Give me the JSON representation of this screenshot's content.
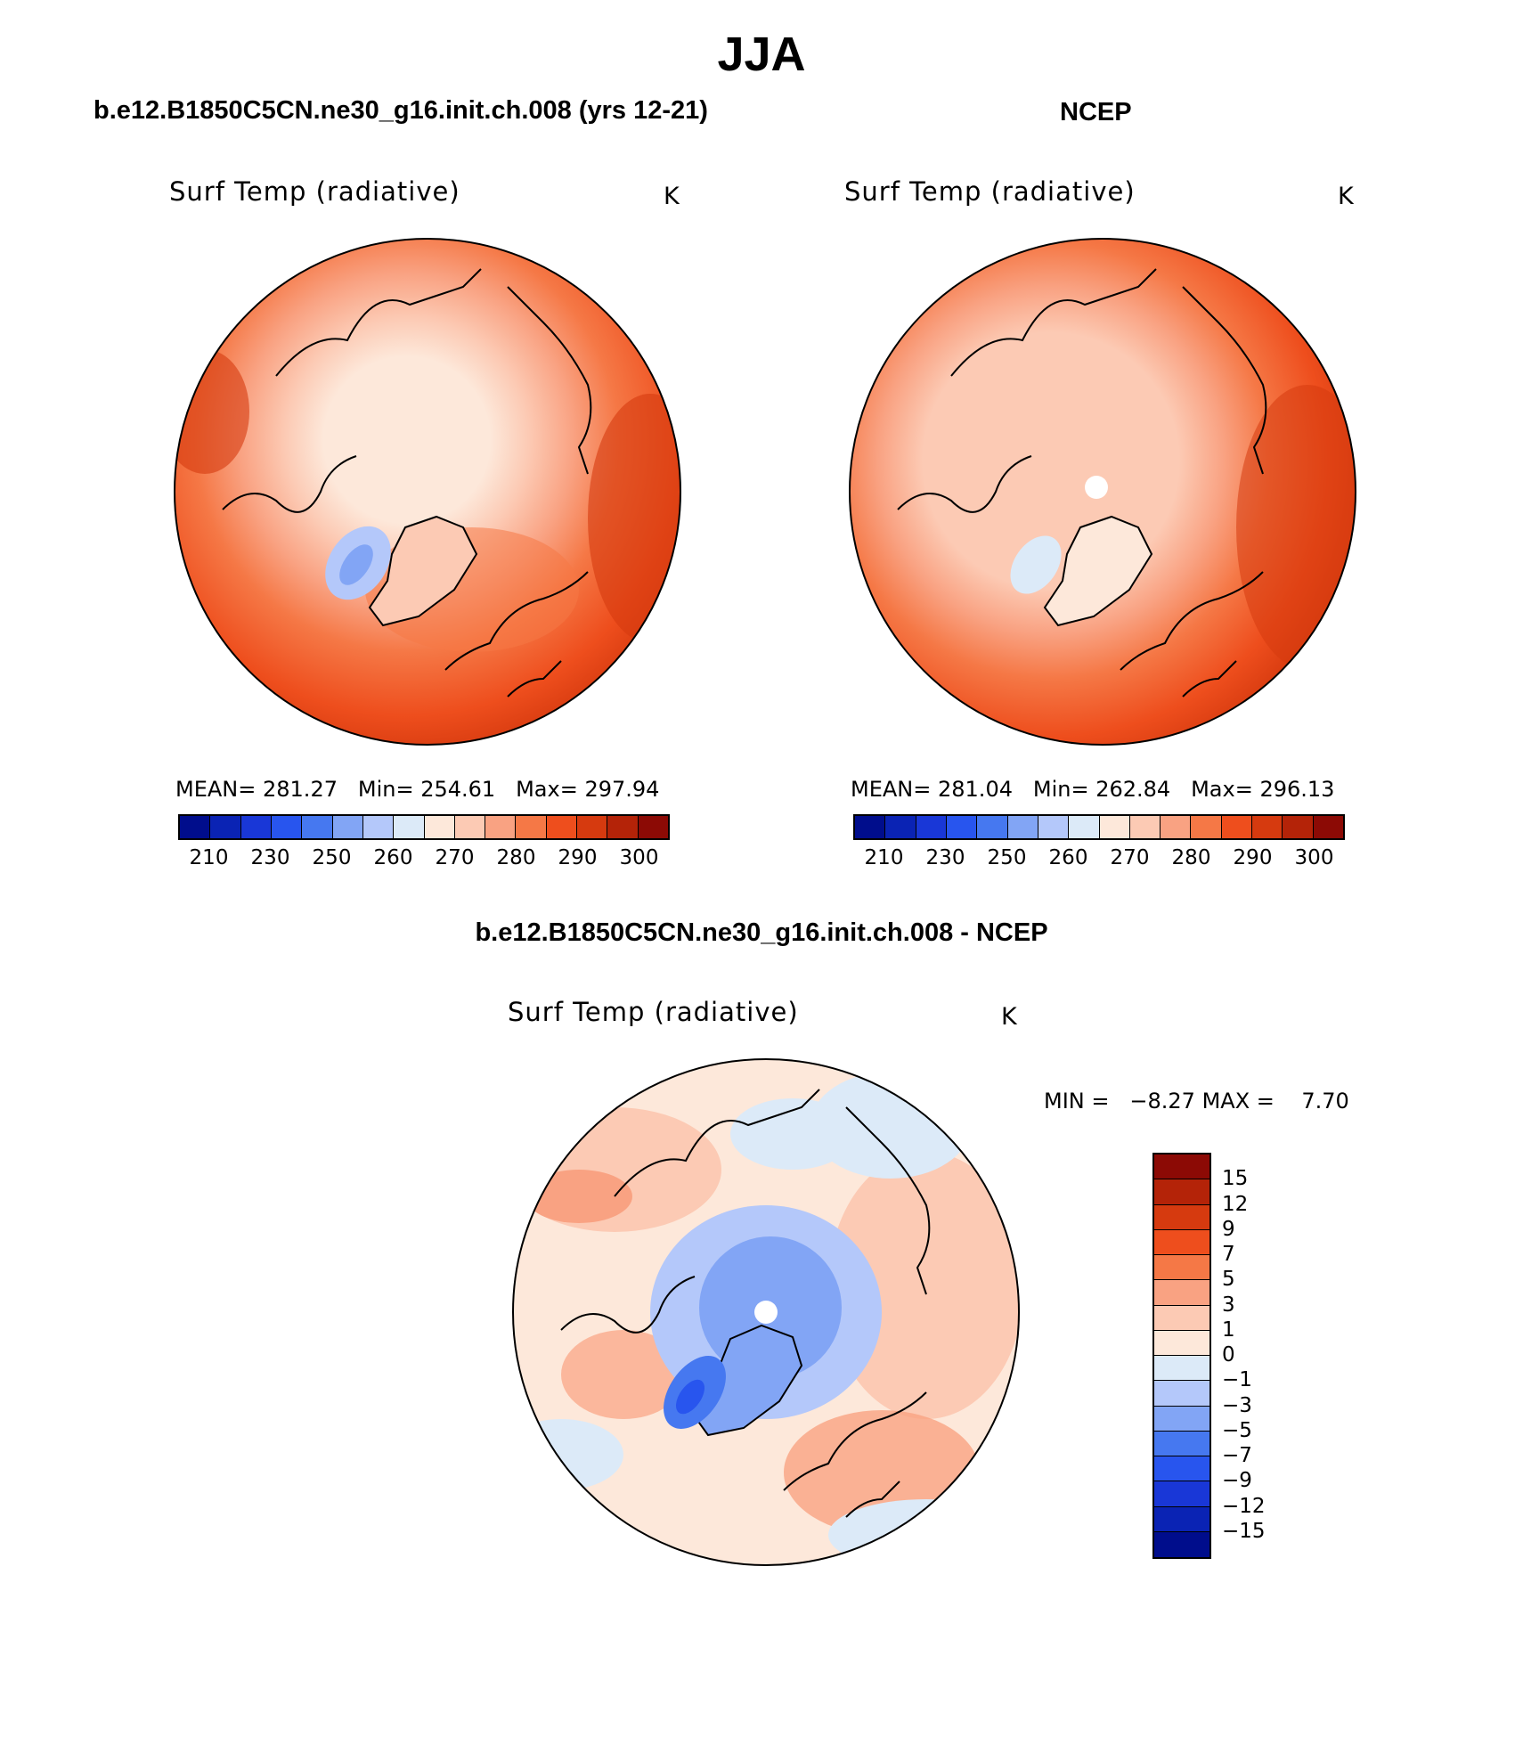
{
  "figure": {
    "season_title": "JJA",
    "diff_title": "b.e12.B1850C5CN.ne30_g16.init.ch.008 - NCEP"
  },
  "panels": {
    "model": {
      "title": "b.e12.B1850C5CN.ne30_g16.init.ch.008 (yrs 12-21)",
      "variable": "Surf Temp (radiative)",
      "units": "K",
      "mean_label": "MEAN=",
      "mean_value": "281.27",
      "min_label": "Min=",
      "min_value": "254.61",
      "max_label": "Max=",
      "max_value": "297.94"
    },
    "obs": {
      "title": "NCEP",
      "variable": "Surf Temp (radiative)",
      "units": "K",
      "mean_label": "MEAN=",
      "mean_value": "281.04",
      "min_label": "Min=",
      "min_value": "262.84",
      "max_label": "Max=",
      "max_value": "296.13"
    },
    "diff": {
      "variable": "Surf Temp (radiative)",
      "units": "K",
      "min_label": "MIN =",
      "min_value": "−8.27",
      "max_label": "MAX =",
      "max_value": "7.70"
    }
  },
  "colorbars": {
    "absolute": {
      "colors": [
        "#000d8c",
        "#0a23b4",
        "#1937d7",
        "#2855ee",
        "#4678f0",
        "#82a5f5",
        "#b4c8fa",
        "#dceaf8",
        "#fde8da",
        "#fccab4",
        "#f9a282",
        "#f57846",
        "#ee4e1d",
        "#d63a0f",
        "#b42308",
        "#8c0a05"
      ],
      "tick_labels": [
        "210",
        "230",
        "250",
        "260",
        "270",
        "280",
        "290",
        "300"
      ]
    },
    "difference": {
      "colors_top_to_bottom": [
        "#8c0a05",
        "#b42308",
        "#d63a0f",
        "#ee4e1d",
        "#f57846",
        "#f9a282",
        "#fccab4",
        "#fde8da",
        "#dceaf8",
        "#b4c8fa",
        "#82a5f5",
        "#4678f0",
        "#2855ee",
        "#1937d7",
        "#0a23b4",
        "#000d8c"
      ],
      "tick_labels": [
        "15",
        "12",
        "9",
        "7",
        "5",
        "3",
        "1",
        "0",
        "−1",
        "−3",
        "−5",
        "−7",
        "−9",
        "−12",
        "−15"
      ]
    }
  }
}
